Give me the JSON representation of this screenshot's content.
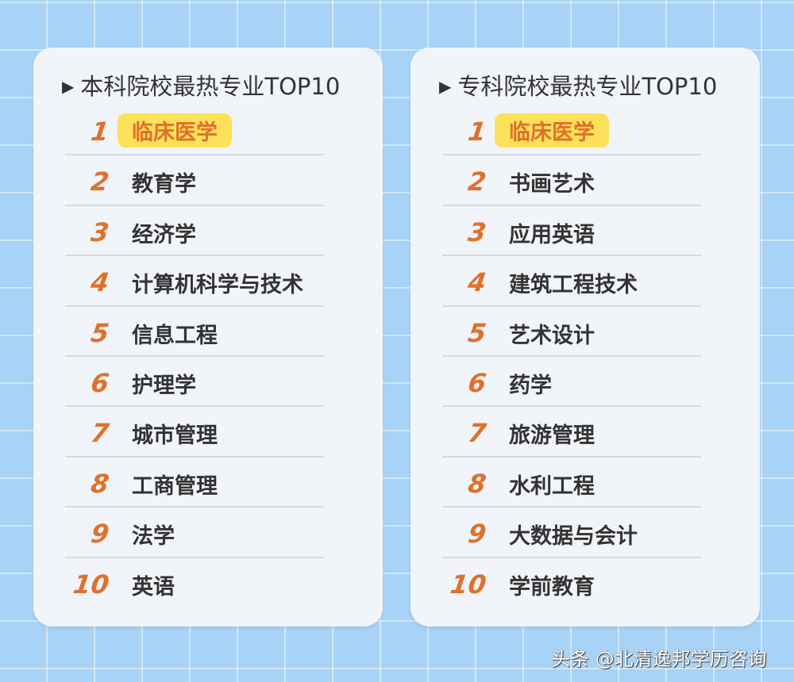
{
  "panels": [
    {
      "title": "本科院校最热专业TOP10",
      "items": [
        {
          "rank": "1",
          "name": "临床医学"
        },
        {
          "rank": "2",
          "name": "教育学"
        },
        {
          "rank": "3",
          "name": "经济学"
        },
        {
          "rank": "4",
          "name": "计算机科学与技术"
        },
        {
          "rank": "5",
          "name": "信息工程"
        },
        {
          "rank": "6",
          "name": "护理学"
        },
        {
          "rank": "7",
          "name": "城市管理"
        },
        {
          "rank": "8",
          "name": "工商管理"
        },
        {
          "rank": "9",
          "name": "法学"
        },
        {
          "rank": "10",
          "name": "英语"
        }
      ]
    },
    {
      "title": "专科院校最热专业TOP10",
      "items": [
        {
          "rank": "1",
          "name": "临床医学"
        },
        {
          "rank": "2",
          "name": "书画艺术"
        },
        {
          "rank": "3",
          "name": "应用英语"
        },
        {
          "rank": "4",
          "name": "建筑工程技术"
        },
        {
          "rank": "5",
          "name": "艺术设计"
        },
        {
          "rank": "6",
          "name": "药学"
        },
        {
          "rank": "7",
          "name": "旅游管理"
        },
        {
          "rank": "8",
          "name": "水利工程"
        },
        {
          "rank": "9",
          "name": "大数据与会计"
        },
        {
          "rank": "10",
          "name": "学前教育"
        }
      ]
    }
  ],
  "watermark": "头条 @北清逸邦学历咨询",
  "colors": {
    "accent": "#e0702b",
    "highlight": "#fde15a",
    "background": "#a8d3f6"
  }
}
